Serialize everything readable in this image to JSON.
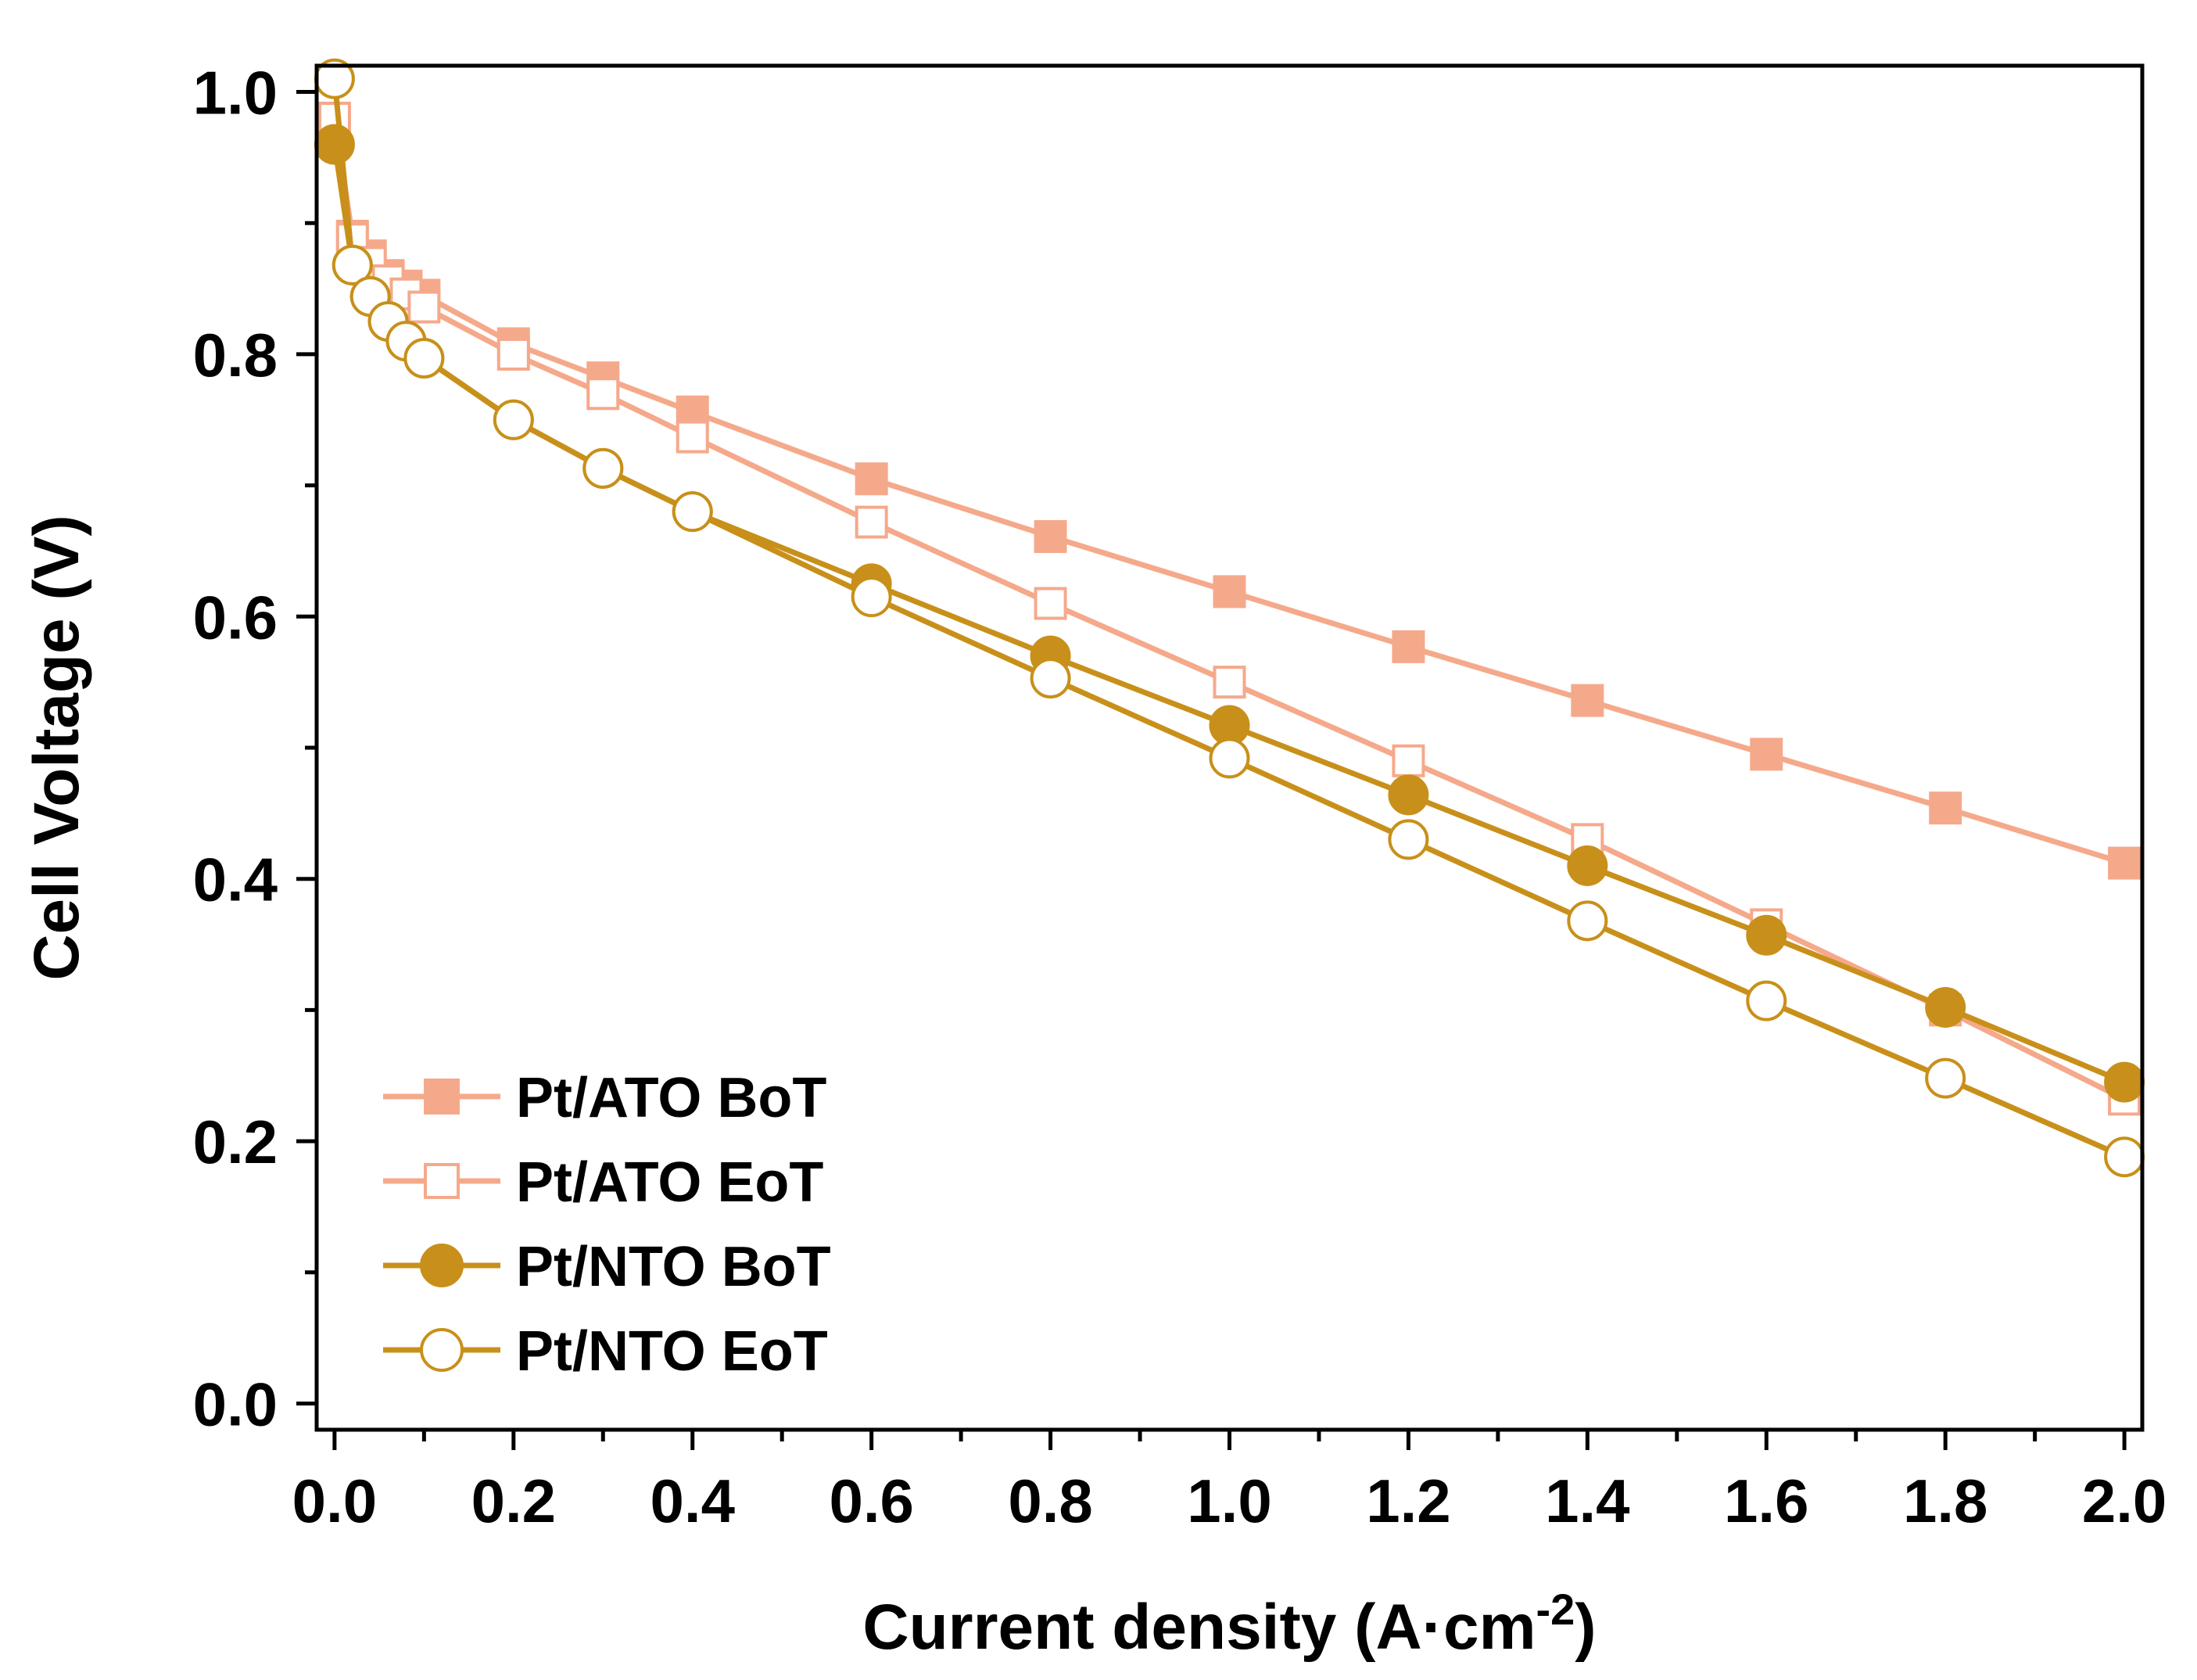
{
  "chart_data": {
    "type": "line",
    "xlabel": "Current density (A·cm",
    "xlabel_sup": "-2",
    "xlabel_close": ")",
    "ylabel": "Cell Voltage (V)",
    "xlim": [
      -0.02,
      2.02
    ],
    "ylim": [
      -0.02,
      1.02
    ],
    "x_ticks": [
      "0.0",
      "0.2",
      "0.4",
      "0.6",
      "0.8",
      "1.0",
      "1.2",
      "1.4",
      "1.6",
      "1.8",
      "2.0"
    ],
    "y_ticks": [
      "0.0",
      "0.2",
      "0.4",
      "0.6",
      "0.8",
      "1.0"
    ],
    "grid": false,
    "legend_position": "bottom-left",
    "series": [
      {
        "name": "Pt/ATO BoT",
        "marker": "square",
        "filled": true,
        "color": "#f5a98b",
        "x": [
          0.0,
          0.02,
          0.04,
          0.06,
          0.08,
          0.1,
          0.2,
          0.3,
          0.4,
          0.6,
          0.8,
          1.0,
          1.2,
          1.4,
          1.6,
          1.8,
          2.0
        ],
        "y": [
          0.98,
          0.89,
          0.875,
          0.86,
          0.852,
          0.845,
          0.808,
          0.782,
          0.756,
          0.705,
          0.661,
          0.619,
          0.577,
          0.536,
          0.495,
          0.454,
          0.412
        ]
      },
      {
        "name": "Pt/ATO EoT",
        "marker": "square",
        "filled": false,
        "color": "#f5a98b",
        "x": [
          0.0,
          0.02,
          0.04,
          0.06,
          0.08,
          0.1,
          0.2,
          0.3,
          0.4,
          0.6,
          0.8,
          1.0,
          1.2,
          1.4,
          1.6,
          1.8,
          2.0
        ],
        "y": [
          0.98,
          0.888,
          0.87,
          0.856,
          0.846,
          0.836,
          0.8,
          0.77,
          0.737,
          0.672,
          0.61,
          0.55,
          0.49,
          0.43,
          0.365,
          0.3,
          0.232
        ]
      },
      {
        "name": "Pt/NTO BoT",
        "marker": "circle",
        "filled": true,
        "color": "#c8901a",
        "x": [
          0.0,
          0.02,
          0.04,
          0.06,
          0.08,
          0.1,
          0.2,
          0.3,
          0.4,
          0.6,
          0.8,
          1.0,
          1.2,
          1.4,
          1.6,
          1.8,
          2.0
        ],
        "y": [
          0.96,
          0.868,
          0.844,
          0.825,
          0.81,
          0.797,
          0.75,
          0.713,
          0.68,
          0.625,
          0.57,
          0.517,
          0.464,
          0.41,
          0.357,
          0.302,
          0.245
        ]
      },
      {
        "name": "Pt/NTO EoT",
        "marker": "circle",
        "filled": false,
        "color": "#c8901a",
        "x": [
          0.0,
          0.02,
          0.04,
          0.06,
          0.08,
          0.1,
          0.2,
          0.3,
          0.4,
          0.6,
          0.8,
          1.0,
          1.2,
          1.4,
          1.6,
          1.8,
          2.0
        ],
        "y": [
          1.01,
          0.868,
          0.844,
          0.825,
          0.81,
          0.797,
          0.75,
          0.713,
          0.68,
          0.615,
          0.553,
          0.492,
          0.43,
          0.368,
          0.307,
          0.248,
          0.188
        ]
      }
    ]
  }
}
